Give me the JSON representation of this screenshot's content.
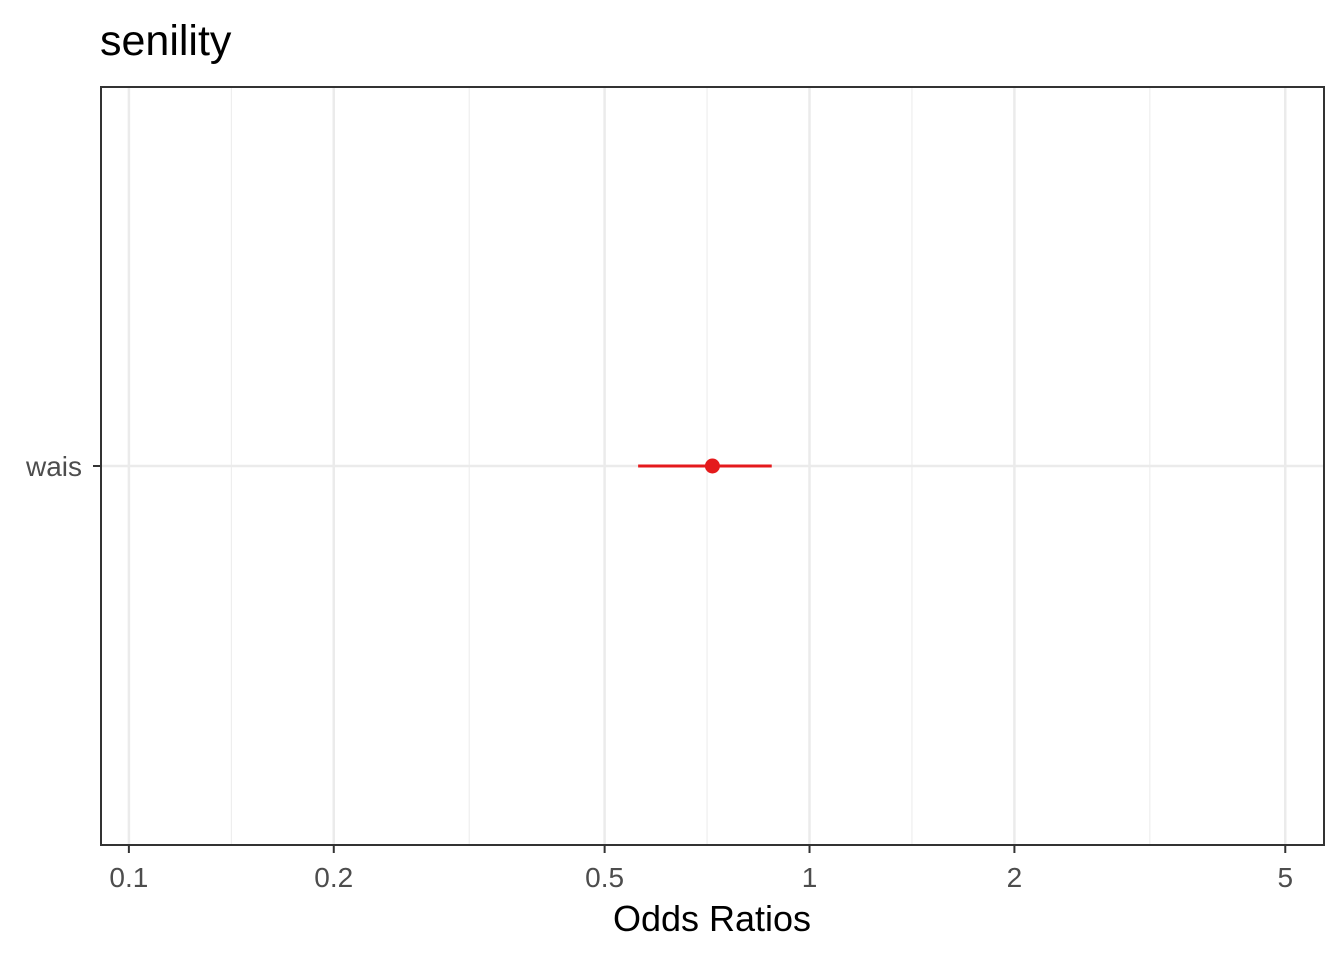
{
  "chart_data": {
    "type": "forest",
    "title": "senility",
    "xlabel": "Odds Ratios",
    "ylabel": "",
    "x_scale": "log",
    "xlim": [
      0.091,
      5.7
    ],
    "x_ticks": [
      0.1,
      0.2,
      0.5,
      1,
      2,
      5
    ],
    "x_tick_labels": [
      "0.1",
      "0.2",
      "0.5",
      "1",
      "2",
      "5"
    ],
    "grid": true,
    "legend": "none",
    "terms": [
      {
        "label": "wais",
        "estimate": 0.72,
        "conf_low": 0.56,
        "conf_high": 0.88
      }
    ],
    "colors": {
      "estimate": "#e41a1c",
      "grid": "#ebebeb",
      "panel_border": "#333333",
      "tick_text": "#4d4d4d"
    }
  }
}
